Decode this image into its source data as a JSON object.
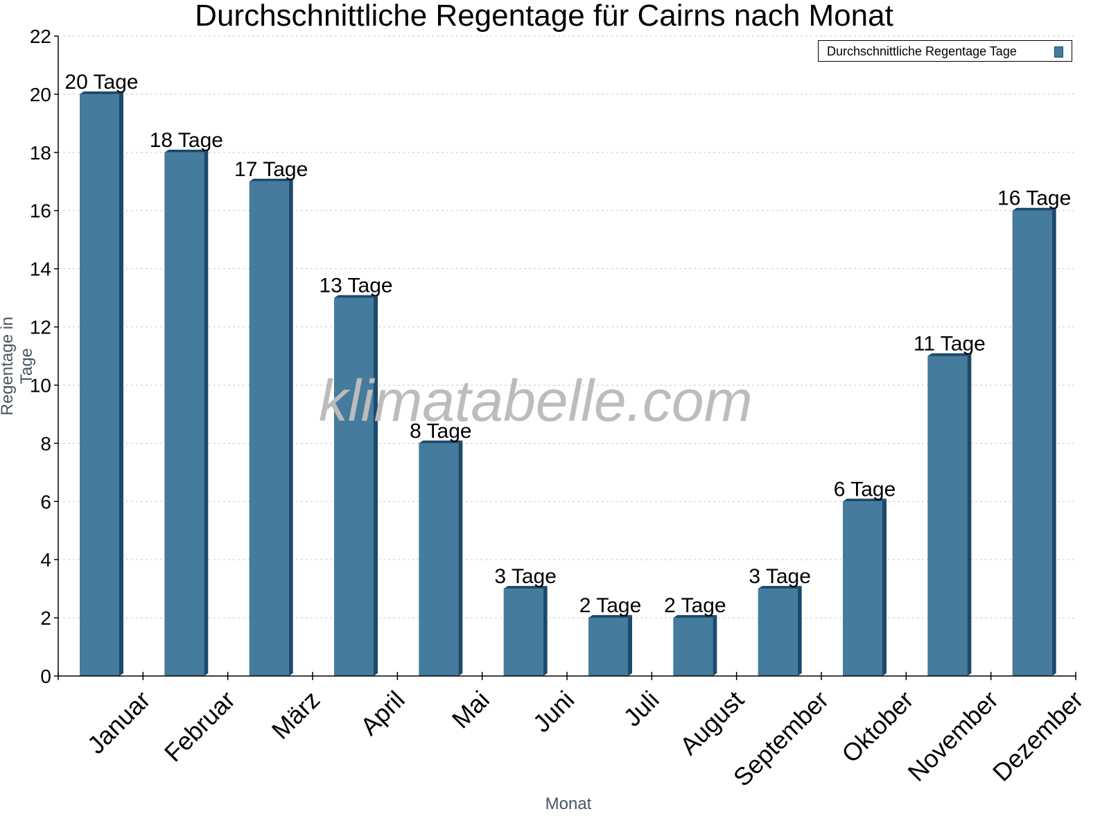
{
  "chart_data": {
    "type": "bar",
    "title": "Durchschnittliche Regentage für Cairns nach Monat",
    "xlabel": "Monat",
    "ylabel": "Regentage in Tage",
    "categories": [
      "Januar",
      "Februar",
      "März",
      "April",
      "Mai",
      "Juni",
      "Juli",
      "August",
      "September",
      "Oktober",
      "November",
      "Dezember"
    ],
    "series": [
      {
        "name": "Durchschnittliche Regentage Tage",
        "values": [
          20,
          18,
          17,
          13,
          8,
          3,
          2,
          2,
          3,
          6,
          11,
          16
        ],
        "color": "#457b9d"
      }
    ],
    "data_labels": [
      "20 Tage",
      "18 Tage",
      "17 Tage",
      "13 Tage",
      "8 Tage",
      "3 Tage",
      "2 Tage",
      "2 Tage",
      "3 Tage",
      "6 Tage",
      "11 Tage",
      "16 Tage"
    ],
    "ylim": [
      0,
      22
    ],
    "yticks": [
      0,
      2,
      4,
      6,
      8,
      10,
      12,
      14,
      16,
      18,
      20,
      22
    ],
    "grid": true,
    "legend_position": "top-right",
    "watermark": "klimatabelle.com"
  },
  "colors": {
    "bar_face": "#457b9d",
    "bar_side": "#1b4a6b",
    "grid": "#c8c8c8",
    "axis_title": "#4a5560"
  }
}
